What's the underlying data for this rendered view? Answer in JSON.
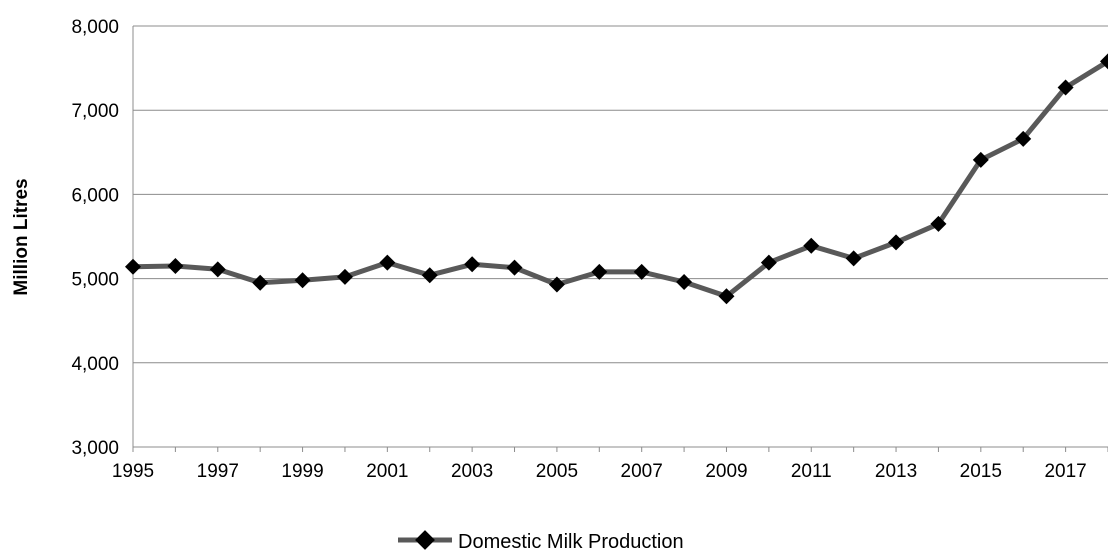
{
  "chart_data": {
    "type": "line",
    "title": "",
    "xlabel": "",
    "ylabel": "Million Litres",
    "ylim": [
      3000,
      8000
    ],
    "xlim": [
      1995,
      2018
    ],
    "y_ticks": [
      "3,000",
      "4,000",
      "5,000",
      "6,000",
      "7,000",
      "8,000"
    ],
    "y_tick_values": [
      3000,
      4000,
      5000,
      6000,
      7000,
      8000
    ],
    "x_ticks": [
      "1995",
      "1997",
      "1999",
      "2001",
      "2003",
      "2005",
      "2007",
      "2009",
      "2011",
      "2013",
      "2015",
      "2017"
    ],
    "x_tick_values": [
      1995,
      1997,
      1999,
      2001,
      2003,
      2005,
      2007,
      2009,
      2011,
      2013,
      2015,
      2017
    ],
    "grid": "horizontal",
    "legend_position": "bottom-center",
    "series": [
      {
        "name": "Domestic Milk Production",
        "color": "#595959",
        "marker": "diamond",
        "marker_color": "#000000",
        "x": [
          1995,
          1996,
          1997,
          1998,
          1999,
          2000,
          2001,
          2002,
          2003,
          2004,
          2005,
          2006,
          2007,
          2008,
          2009,
          2010,
          2011,
          2012,
          2013,
          2014,
          2015,
          2016,
          2017,
          2018
        ],
        "values": [
          5140,
          5150,
          5110,
          4950,
          4980,
          5020,
          5190,
          5040,
          5170,
          5130,
          4930,
          5080,
          5080,
          4960,
          4790,
          5190,
          5390,
          5240,
          5430,
          5650,
          6410,
          6660,
          7270,
          7580
        ]
      }
    ]
  }
}
